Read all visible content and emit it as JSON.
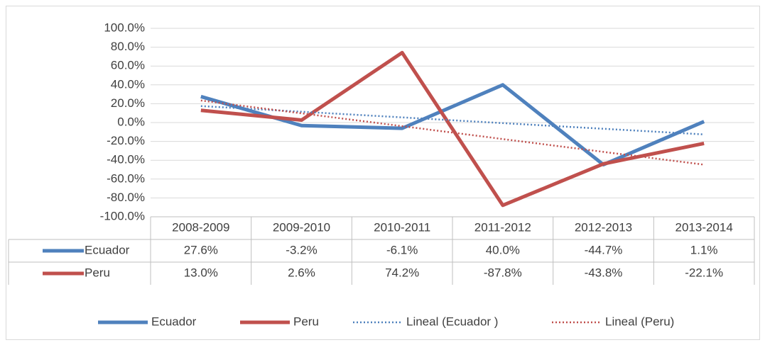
{
  "chart_data": {
    "type": "line",
    "categories": [
      "2008-2009",
      "2009-2010",
      "2010-2011",
      "2011-2012",
      "2012-2013",
      "2013-2014"
    ],
    "series": [
      {
        "name": "Ecuador",
        "color": "#4f81bd",
        "values": [
          27.6,
          -3.2,
          -6.1,
          40.0,
          -44.7,
          1.1
        ],
        "value_labels": [
          "27.6%",
          "-3.2%",
          "-6.1%",
          "40.0%",
          "-44.7%",
          "1.1%"
        ]
      },
      {
        "name": "Peru",
        "color": "#c0504d",
        "values": [
          13.0,
          2.6,
          74.2,
          -87.8,
          -43.8,
          -22.1
        ],
        "value_labels": [
          "13.0%",
          "2.6%",
          "74.2%",
          "-87.8%",
          "-43.8%",
          "-22.1%"
        ]
      },
      {
        "name": "Lineal (Ecuador )",
        "color": "#4f81bd",
        "dotted": true,
        "values": [
          17.5,
          11.5,
          5.5,
          -0.6,
          -6.6,
          -12.6
        ]
      },
      {
        "name": "Lineal (Peru)",
        "color": "#c0504d",
        "dotted": true,
        "values": [
          23.4,
          9.8,
          -3.8,
          -17.5,
          -31.1,
          -44.7
        ]
      }
    ],
    "ylim": [
      -100,
      100
    ],
    "yticks": [
      {
        "value": -100,
        "label": "-100.0%"
      },
      {
        "value": -80,
        "label": "-80.0%"
      },
      {
        "value": -60,
        "label": "-60.0%"
      },
      {
        "value": -40,
        "label": "-40.0%"
      },
      {
        "value": -20,
        "label": "-20.0%"
      },
      {
        "value": 0,
        "label": "0.0%"
      },
      {
        "value": 20,
        "label": "20.0%"
      },
      {
        "value": 40,
        "label": "40.0%"
      },
      {
        "value": 60,
        "label": "60.0%"
      },
      {
        "value": 80,
        "label": "80.0%"
      },
      {
        "value": 100,
        "label": "100.0%"
      }
    ],
    "grid": true,
    "legend": "bottom"
  }
}
